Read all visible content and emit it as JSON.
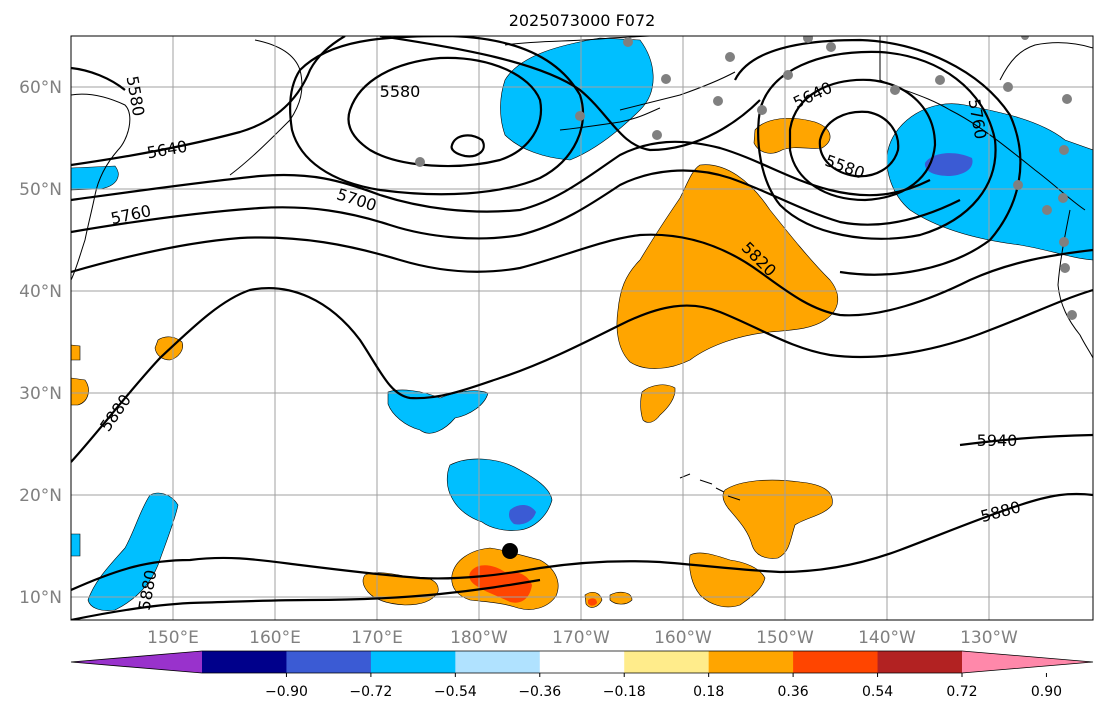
{
  "title": "2025073000 F072",
  "lat_labels": [
    "60°N",
    "50°N",
    "40°N",
    "30°N",
    "20°N",
    "10°N"
  ],
  "lon_labels": [
    "150°E",
    "160°E",
    "170°E",
    "180°W",
    "170°W",
    "160°W",
    "150°W",
    "140°W",
    "130°W"
  ],
  "contour_labels": [
    "5580",
    "5580",
    "5640",
    "5760",
    "5700",
    "5820",
    "5640",
    "5580",
    "5760",
    "5880",
    "5940",
    "5880",
    "5880"
  ],
  "colorbar": {
    "colors": [
      "#9932cc",
      "#00008b",
      "#3b5bd4",
      "#00bfff",
      "#b0e2ff",
      "#ffffff",
      "#ffec8b",
      "#ffa500",
      "#ff4500",
      "#b22222",
      "#ff88aa"
    ],
    "tick_labels": [
      "−0.90",
      "−0.72",
      "−0.54",
      "−0.36",
      "−0.18",
      "0.18",
      "0.36",
      "0.54",
      "0.72",
      "0.90"
    ]
  },
  "colors": {
    "negative_fill": "#00bfff",
    "positive_fill": "#ffa500",
    "strong_negative": "#3b5bd4",
    "strong_positive": "#ff4500",
    "station_dot": "#808080",
    "grid": "#a0a0a0"
  },
  "marker": {
    "name": "black-dot",
    "lon": -177,
    "lat": 14.5
  }
}
